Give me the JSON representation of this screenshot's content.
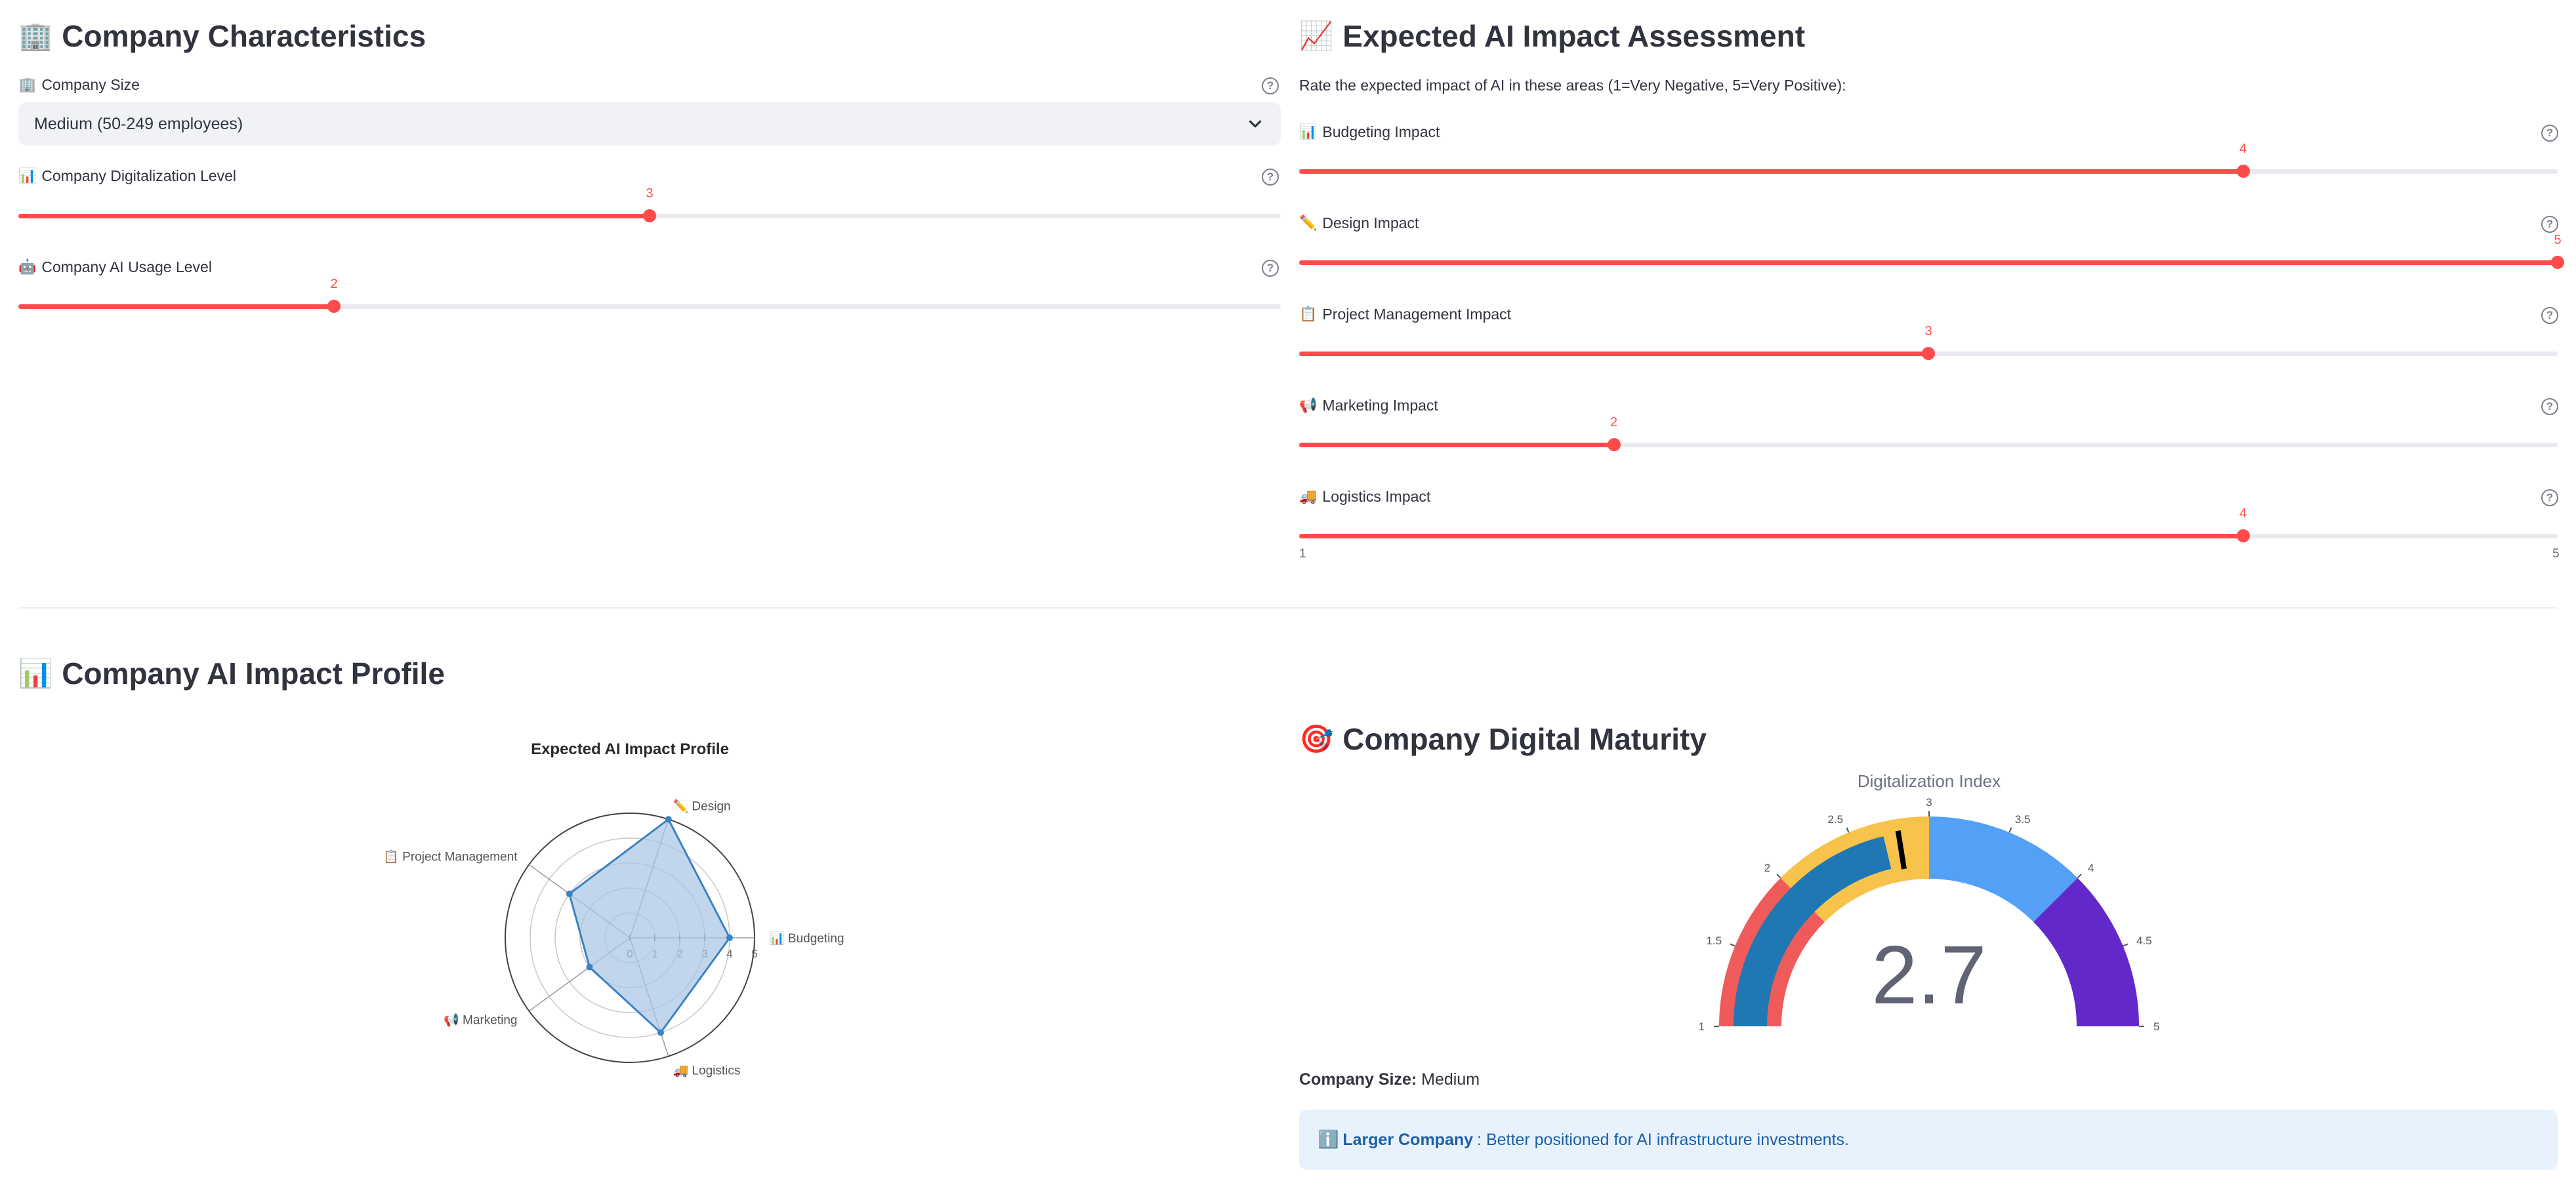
{
  "left": {
    "section_title": "Company Characteristics",
    "section_icon": "🏢",
    "company_size": {
      "label": "Company Size",
      "icon": "🏢",
      "value": "Medium (50-249 employees)"
    },
    "digitalization": {
      "label": "Company Digitalization Level",
      "icon": "📊",
      "value": "3",
      "min": 1,
      "max": 5
    },
    "ai_usage": {
      "label": "Company AI Usage Level",
      "icon": "🤖",
      "value": "2",
      "min": 1,
      "max": 5
    }
  },
  "right": {
    "section_title": "Expected AI Impact Assessment",
    "section_icon": "📈",
    "instruction": "Rate the expected impact of AI in these areas (1=Very Negative, 5=Very Positive):",
    "sliders": [
      {
        "label": "Budgeting Impact",
        "icon": "📊",
        "value": "4"
      },
      {
        "label": "Design Impact",
        "icon": "✏️",
        "value": "5"
      },
      {
        "label": "Project Management Impact",
        "icon": "📋",
        "value": "3"
      },
      {
        "label": "Marketing Impact",
        "icon": "📢",
        "value": "2"
      },
      {
        "label": "Logistics Impact",
        "icon": "🚚",
        "value": "4"
      }
    ],
    "slider_min_label": "1",
    "slider_max_label": "5"
  },
  "profile": {
    "section_title": "Company AI Impact Profile",
    "section_icon": "📊"
  },
  "maturity": {
    "section_title": "Company Digital Maturity",
    "section_icon": "🎯",
    "company_size_label": "Company Size:",
    "company_size_value": "Medium",
    "info_icon": "ℹ️",
    "info_bold": "Larger Company",
    "info_text": ": Better positioned for AI infrastructure investments."
  },
  "chart_data": [
    {
      "type": "radar",
      "title": "Expected AI Impact Profile",
      "categories": [
        "📊 Budgeting",
        "✏️ Design",
        "📋 Project Management",
        "📢 Marketing",
        "🚚 Logistics"
      ],
      "values": [
        4,
        5,
        3,
        2,
        4
      ],
      "radial_range": [
        0,
        5
      ],
      "radial_ticks": [
        "0",
        "1",
        "2",
        "3",
        "4",
        "5"
      ],
      "fill_color": "#a9c6e4",
      "line_color": "#3b82c4"
    },
    {
      "type": "gauge",
      "title": "Digitalization Index",
      "value": "2.7",
      "range": [
        1,
        5
      ],
      "ticks": [
        "1",
        "1.5",
        "2",
        "2.5",
        "3",
        "3.5",
        "4",
        "4.5",
        "5"
      ],
      "steps": [
        {
          "range": [
            1,
            2
          ],
          "color": "#ef5b5b"
        },
        {
          "range": [
            2,
            3
          ],
          "color": "#f8c34a"
        },
        {
          "range": [
            3,
            4
          ],
          "color": "#54a0f7"
        },
        {
          "range": [
            4,
            5
          ],
          "color": "#6228c9"
        }
      ],
      "bar_color": "#1f77b4",
      "threshold": 2.8
    }
  ]
}
